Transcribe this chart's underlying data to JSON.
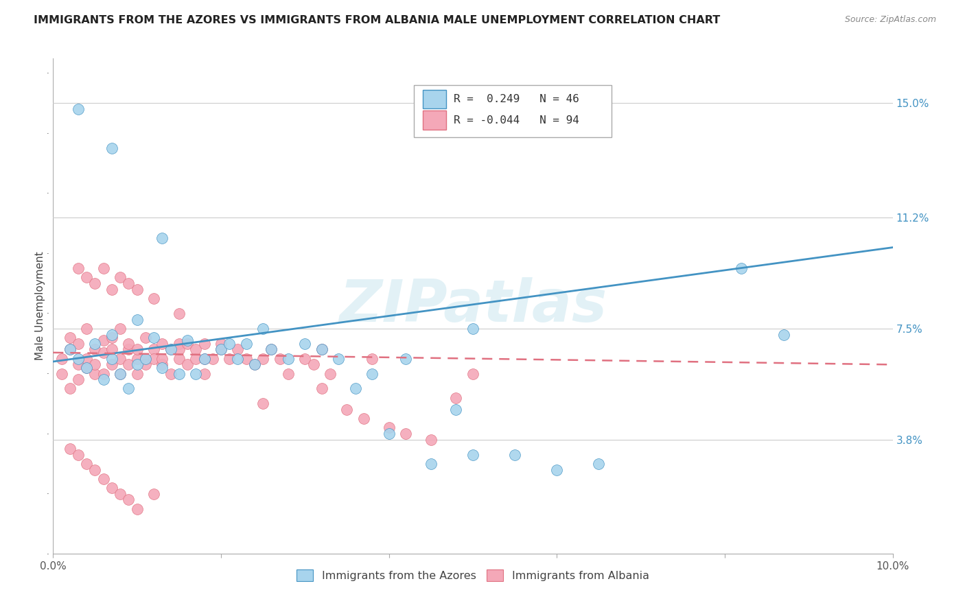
{
  "title": "IMMIGRANTS FROM THE AZORES VS IMMIGRANTS FROM ALBANIA MALE UNEMPLOYMENT CORRELATION CHART",
  "source": "Source: ZipAtlas.com",
  "ylabel": "Male Unemployment",
  "ytick_labels": [
    "3.8%",
    "7.5%",
    "11.2%",
    "15.0%"
  ],
  "ytick_values": [
    0.038,
    0.075,
    0.112,
    0.15
  ],
  "watermark": "ZIPatlas",
  "legend_azores": "Immigrants from the Azores",
  "legend_albania": "Immigrants from Albania",
  "r_azores": "0.249",
  "n_azores": "46",
  "r_albania": "-0.044",
  "n_albania": "94",
  "color_azores": "#A8D4ED",
  "color_albania": "#F4A8B8",
  "line_color_azores": "#4393C3",
  "line_color_albania": "#E07080",
  "background_color": "#FFFFFF",
  "grid_color": "#CCCCCC",
  "xmin": 0.0,
  "xmax": 0.1,
  "ymin": 0.0,
  "ymax": 0.165
}
